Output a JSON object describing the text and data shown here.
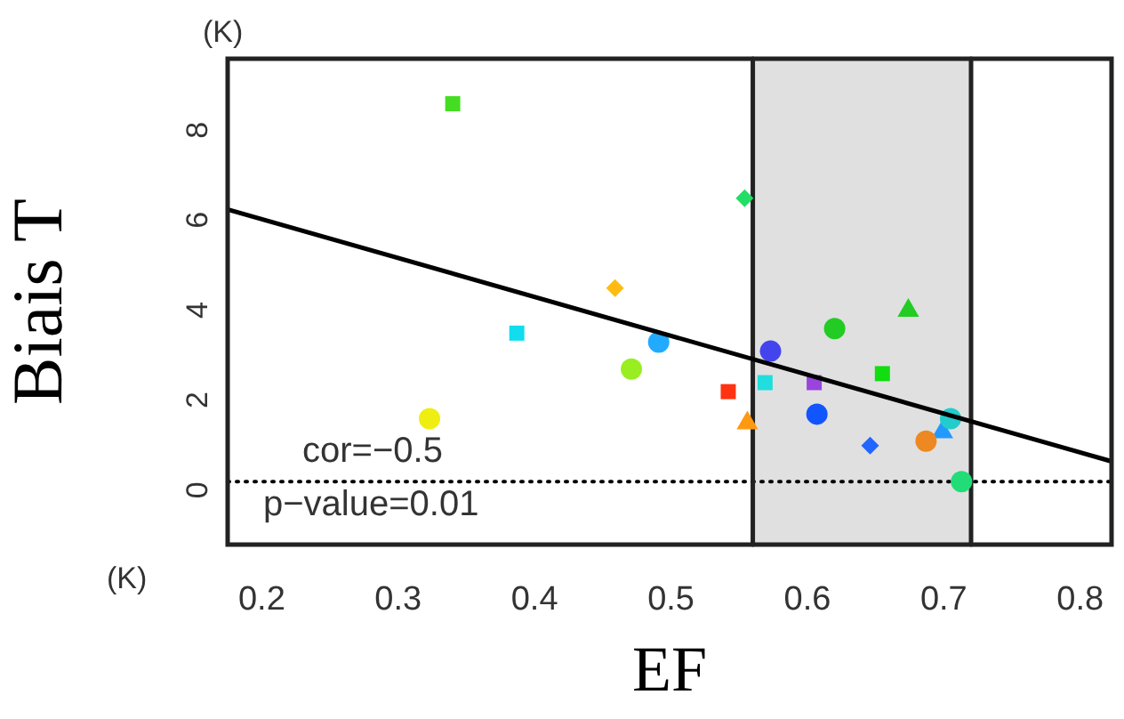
{
  "chart_data": {
    "type": "scatter",
    "xlabel": "EF",
    "ylabel": "Biais T",
    "annotations": [
      "(K)",
      "cor=−0.5",
      "p−value=0.01",
      "(K)"
    ],
    "xlim": [
      0.175,
      0.823
    ],
    "ylim": [
      -1.4,
      9.4
    ],
    "xticks": [
      0.2,
      0.3,
      0.4,
      0.5,
      0.6,
      0.7,
      0.8
    ],
    "yticks": [
      0,
      2,
      4,
      6,
      8
    ],
    "grid": false,
    "legend": false,
    "ref_lines": [
      {
        "axis": "y",
        "value": 0,
        "line_style": "dotted",
        "color": "#000000"
      },
      {
        "axis": "x",
        "value": 0.56,
        "line_style": "solid",
        "color": "#222222"
      },
      {
        "axis": "x",
        "value": 0.72,
        "line_style": "solid",
        "color": "#222222"
      }
    ],
    "bands": [
      {
        "axis": "x",
        "from": 0.56,
        "to": 0.72,
        "color": "#e0e0e0"
      }
    ],
    "series": [
      {
        "type": "line",
        "color": "#000000",
        "marker": "none",
        "x": [
          0.175,
          0.823
        ],
        "values": [
          6.05,
          0.45
        ]
      },
      {
        "color": "#44dd22",
        "marker": "square",
        "x": [
          0.34
        ],
        "values": [
          8.4
        ]
      },
      {
        "color": "#22dd66",
        "marker": "diamond",
        "x": [
          0.554
        ],
        "values": [
          6.3
        ]
      },
      {
        "color": "#ffbb11",
        "marker": "diamond",
        "x": [
          0.459
        ],
        "values": [
          4.3
        ]
      },
      {
        "color": "#11ddee",
        "marker": "square",
        "x": [
          0.387
        ],
        "values": [
          3.3
        ]
      },
      {
        "color": "#22aaff",
        "marker": "circle",
        "x": [
          0.491
        ],
        "values": [
          3.1
        ]
      },
      {
        "color": "#99ee22",
        "marker": "circle",
        "x": [
          0.471
        ],
        "values": [
          2.5
        ]
      },
      {
        "color": "#ff3311",
        "marker": "square",
        "x": [
          0.542
        ],
        "values": [
          2.0
        ]
      },
      {
        "color": "#ff9911",
        "marker": "triangle",
        "x": [
          0.556
        ],
        "values": [
          1.3
        ]
      },
      {
        "color": "#eeee11",
        "marker": "circle",
        "x": [
          0.323
        ],
        "values": [
          1.4
        ]
      },
      {
        "color": "#4444ee",
        "marker": "circle",
        "x": [
          0.573
        ],
        "values": [
          2.9
        ]
      },
      {
        "color": "#22dddd",
        "marker": "square",
        "x": [
          0.569
        ],
        "values": [
          2.2
        ]
      },
      {
        "color": "#9944dd",
        "marker": "square",
        "x": [
          0.605
        ],
        "values": [
          2.2
        ]
      },
      {
        "color": "#1155ff",
        "marker": "circle",
        "x": [
          0.607
        ],
        "values": [
          1.5
        ]
      },
      {
        "color": "#22cc22",
        "marker": "circle",
        "x": [
          0.62
        ],
        "values": [
          3.4
        ]
      },
      {
        "color": "#22cc22",
        "marker": "triangle",
        "x": [
          0.674
        ],
        "values": [
          3.8
        ]
      },
      {
        "color": "#11dd11",
        "marker": "square",
        "x": [
          0.655
        ],
        "values": [
          2.4
        ]
      },
      {
        "color": "#2266ff",
        "marker": "diamond",
        "x": [
          0.646
        ],
        "values": [
          0.8
        ]
      },
      {
        "color": "#ee8822",
        "marker": "circle",
        "x": [
          0.687
        ],
        "values": [
          0.9
        ]
      },
      {
        "color": "#22cccc",
        "marker": "circle",
        "x": [
          0.705
        ],
        "values": [
          1.4
        ]
      },
      {
        "color": "#2299ff",
        "marker": "triangle",
        "x": [
          0.699
        ],
        "values": [
          1.1
        ]
      },
      {
        "color": "#22dd77",
        "marker": "circle",
        "x": [
          0.713
        ],
        "values": [
          0
        ]
      }
    ]
  }
}
